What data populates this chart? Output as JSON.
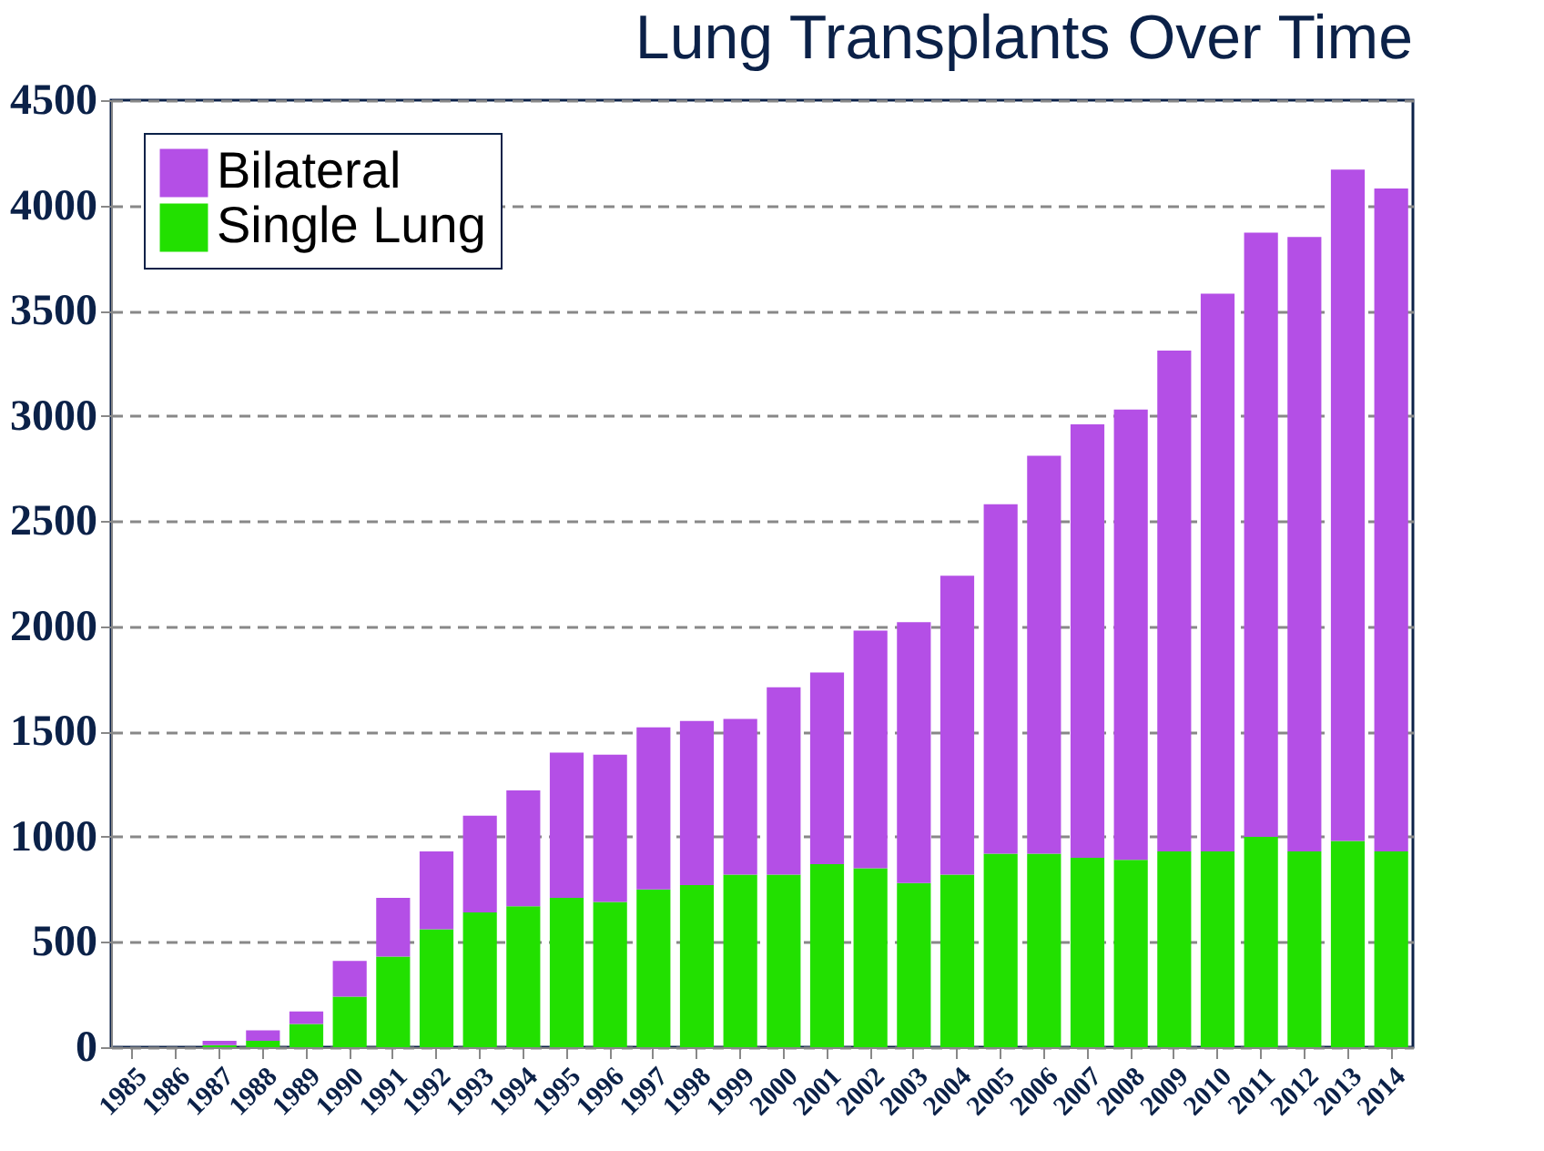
{
  "chart_data": {
    "type": "bar",
    "title": "Lung Transplants Over Time",
    "stacked": true,
    "legend": "top left",
    "grid": "y",
    "categories": [
      "1985",
      "1986",
      "1987",
      "1988",
      "1989",
      "1990",
      "1991",
      "1992",
      "1993",
      "1994",
      "1995",
      "1996",
      "1997",
      "1998",
      "1999",
      "2000",
      "2001",
      "2002",
      "2003",
      "2004",
      "2005",
      "2006",
      "2007",
      "2008",
      "2009",
      "2010",
      "2011",
      "2012",
      "2013",
      "2014"
    ],
    "series": [
      {
        "name": "Single Lung",
        "color": "#22e000",
        "values": [
          0,
          0,
          10,
          30,
          110,
          240,
          430,
          560,
          640,
          670,
          710,
          690,
          750,
          770,
          820,
          820,
          870,
          850,
          780,
          820,
          920,
          920,
          900,
          890,
          930,
          930,
          1000,
          930,
          980,
          930
        ]
      },
      {
        "name": "Bilateral",
        "color": "#b44fe6",
        "values": [
          0,
          0,
          20,
          50,
          60,
          170,
          280,
          370,
          460,
          550,
          690,
          700,
          770,
          780,
          740,
          890,
          910,
          1130,
          1240,
          1420,
          1660,
          1890,
          2060,
          2140,
          2380,
          2650,
          2870,
          2920,
          3190,
          3150
        ]
      }
    ],
    "ylim": [
      0,
      4500
    ],
    "yticks": [
      0,
      500,
      1000,
      1500,
      2000,
      2500,
      3000,
      3500,
      4000,
      4500
    ]
  }
}
